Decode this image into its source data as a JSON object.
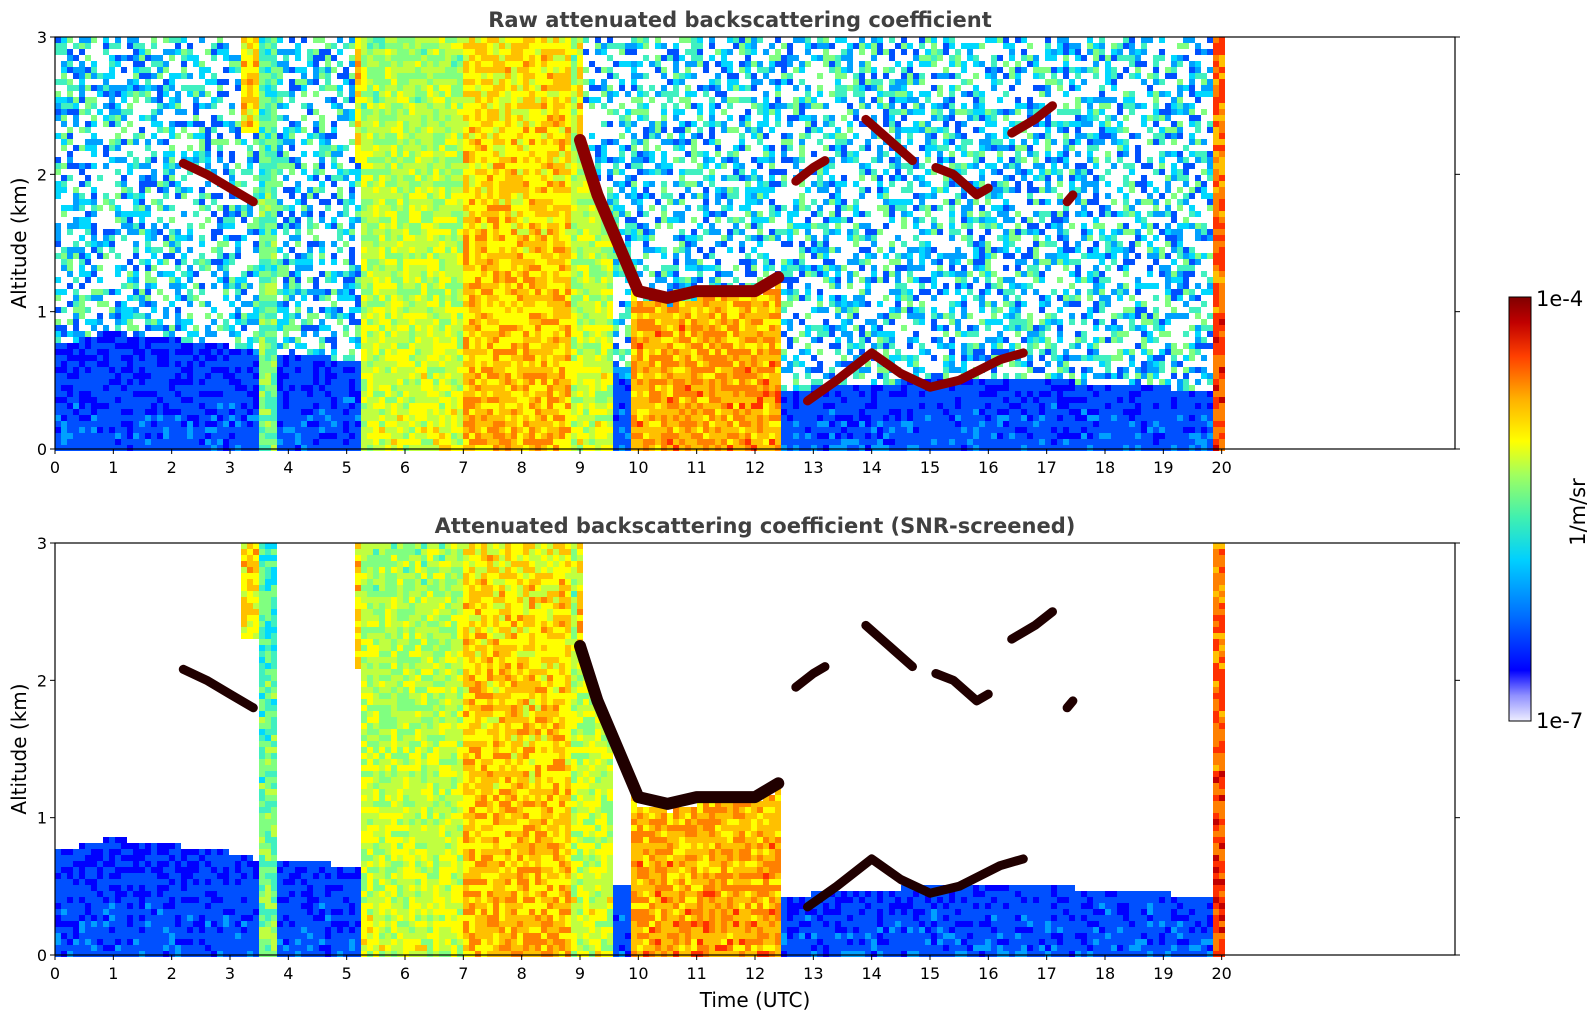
{
  "chart_data": [
    {
      "type": "heatmap",
      "title": "Raw attenuated backscattering coefficient",
      "xlabel": "",
      "ylabel": "Altitude (km)",
      "xlim": [
        0,
        24
      ],
      "ylim": [
        0,
        3
      ],
      "xticks": [
        "0",
        "1",
        "2",
        "3",
        "4",
        "5",
        "6",
        "7",
        "8",
        "9",
        "10",
        "11",
        "12",
        "13",
        "14",
        "15",
        "16",
        "17",
        "18",
        "19",
        "20"
      ],
      "yticks": [
        "0",
        "1",
        "2",
        "3"
      ],
      "screened": false
    },
    {
      "type": "heatmap",
      "title": "Attenuated backscattering coefficient (SNR-screened)",
      "xlabel": "Time (UTC)",
      "ylabel": "Altitude (km)",
      "xlim": [
        0,
        24
      ],
      "ylim": [
        0,
        3
      ],
      "xticks": [
        "0",
        "1",
        "2",
        "3",
        "4",
        "5",
        "6",
        "7",
        "8",
        "9",
        "10",
        "11",
        "12",
        "13",
        "14",
        "15",
        "16",
        "17",
        "18",
        "19",
        "20"
      ],
      "yticks": [
        "0",
        "1",
        "2",
        "3"
      ],
      "screened": true
    }
  ],
  "features": {
    "data_end_hour": 20.1,
    "aerosol_layer": [
      [
        0,
        0.75
      ],
      [
        1,
        0.85
      ],
      [
        2,
        0.8
      ],
      [
        3,
        0.75
      ],
      [
        3.4,
        0.7
      ],
      [
        5.2,
        0.65
      ],
      [
        12.4,
        0.4
      ],
      [
        13,
        0.45
      ],
      [
        15,
        0.5
      ],
      [
        17,
        0.5
      ],
      [
        19,
        0.45
      ],
      [
        20,
        0.4
      ]
    ],
    "cloud_base": [
      [
        9,
        2.2
      ],
      [
        9.3,
        1.8
      ],
      [
        9.6,
        1.5
      ],
      [
        10,
        1.1
      ],
      [
        10.5,
        1.05
      ],
      [
        11,
        1.1
      ],
      [
        11.5,
        1.1
      ],
      [
        12,
        1.1
      ],
      [
        12.4,
        1.2
      ]
    ],
    "dense_columns": [
      {
        "start": 3.5,
        "end": 3.8,
        "level": 0.5
      },
      {
        "start": 5.25,
        "end": 7.0,
        "level": 0.6
      },
      {
        "start": 7.0,
        "end": 8.8,
        "level": 0.72
      },
      {
        "start": 8.8,
        "end": 9.6,
        "level": 0.6
      },
      {
        "start": 9.9,
        "end": 12.4,
        "level": 0.75
      },
      {
        "start": 19.9,
        "end": 20.1,
        "level": 0.85
      }
    ],
    "upper_aerosol": [
      {
        "start": 3.2,
        "end": 3.6,
        "top": 3.0,
        "bottom": 2.3
      },
      {
        "start": 5.1,
        "end": 9.0,
        "top": 3.0,
        "bottom": 2.1
      }
    ],
    "cloud_segments": [
      {
        "points": [
          [
            2.2,
            2.08
          ],
          [
            2.6,
            2.0
          ],
          [
            3.0,
            1.9
          ],
          [
            3.4,
            1.8
          ]
        ]
      },
      {
        "points": [
          [
            12.7,
            1.95
          ],
          [
            13.0,
            2.05
          ],
          [
            13.2,
            2.1
          ]
        ]
      },
      {
        "points": [
          [
            13.9,
            2.4
          ],
          [
            14.3,
            2.25
          ],
          [
            14.7,
            2.1
          ]
        ]
      },
      {
        "points": [
          [
            15.1,
            2.05
          ],
          [
            15.4,
            2.0
          ],
          [
            15.8,
            1.85
          ],
          [
            16.0,
            1.9
          ]
        ]
      },
      {
        "points": [
          [
            16.4,
            2.3
          ],
          [
            16.8,
            2.4
          ],
          [
            17.1,
            2.5
          ]
        ]
      },
      {
        "points": [
          [
            17.35,
            1.8
          ],
          [
            17.45,
            1.85
          ]
        ]
      },
      {
        "points": [
          [
            12.9,
            0.35
          ],
          [
            13.4,
            0.5
          ],
          [
            14.0,
            0.7
          ],
          [
            14.5,
            0.55
          ],
          [
            15.0,
            0.45
          ],
          [
            15.5,
            0.5
          ],
          [
            16.2,
            0.65
          ],
          [
            16.6,
            0.7
          ]
        ]
      }
    ]
  },
  "colorbar": {
    "max_label": "1e-4",
    "min_label": "1e-7",
    "unit": "1/m/sr",
    "colormap": [
      "#eeeeff",
      "#b0b0ff",
      "#0000ff",
      "#0050ff",
      "#00a0ff",
      "#00d8ff",
      "#40f0c0",
      "#80ff80",
      "#c0ff40",
      "#ffff00",
      "#ffc000",
      "#ff8000",
      "#ff3000",
      "#c00000",
      "#800000"
    ]
  }
}
